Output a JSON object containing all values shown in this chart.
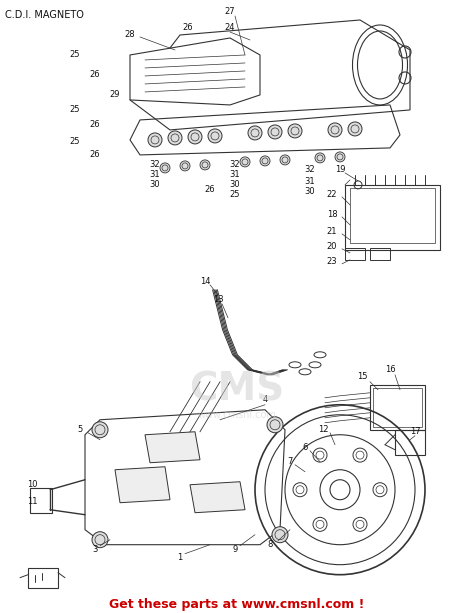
{
  "title": "C.D.I. MAGNETO",
  "footer_text": "Get these parts at www.cmsnl.com !",
  "footer_color": "#cc0000",
  "bg_color": "#ffffff",
  "watermark_text": "CMS",
  "watermark_url": "www.cmsnl.com",
  "title_fontsize": 7,
  "footer_fontsize": 9,
  "fig_width": 4.74,
  "fig_height": 6.13
}
